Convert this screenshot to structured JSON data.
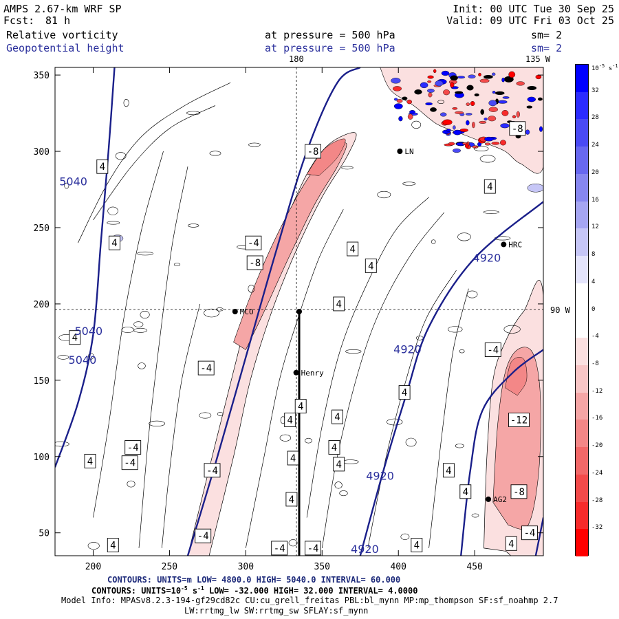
{
  "header": {
    "title": "AMPS 2.67-km WRF SP",
    "forecast_label": "Fcst:",
    "forecast_hours": "81 h",
    "init": "Init: 00 UTC Tue 30 Sep 25",
    "valid": "Valid: 09 UTC Fri 03 Oct 25",
    "field1_name": "Relative vorticity",
    "field1_level": "at pressure =  500 hPa",
    "field1_sm": "sm= 2",
    "field2_name": "Geopotential height",
    "field2_level": "at pressure =  500 hPa",
    "field2_sm": "sm= 2"
  },
  "map_labels": {
    "lon_180": "180",
    "lon_135w": "135 W",
    "lon_90w": "90 W"
  },
  "stations": [
    {
      "name": "MCO",
      "x": 293,
      "y": 195
    },
    {
      "name": "Henry",
      "x": 333,
      "y": 155
    },
    {
      "name": "HRC",
      "x": 469,
      "y": 239
    },
    {
      "name": "AG2",
      "x": 459,
      "y": 72
    },
    {
      "name": "LN",
      "x": 401,
      "y": 300
    },
    {
      "name": "",
      "x": 335,
      "y": 195
    }
  ],
  "contours": {
    "height_line1": "CONTOURS:  UNITS=m  LOW=  4800.0        HIGH=  5040.0        INTERVAL=   60.000",
    "vort_line2_pre": "CONTOURS:  UNITS=10",
    "vort_line2_exp": "-5",
    "vort_line2_post": " s",
    "vort_line2_exp2": "-1",
    "vort_line2_rest": "  LOW=  -32.000         HIGH=  32.000        INTERVAL=   4.0000",
    "model_info": "Model Info: MPASv8.2.3-194-gf29cd82c CU:cu_grell_freitas PBL:bl_mynn MP:mp_thompson SF:sf_noahmp 2.7",
    "model_info2": "LW:rrtmg_lw SW:rrtmg_sw SFLAY:sf_mynn"
  },
  "colorbar": {
    "unit_base": "10",
    "unit_exp": "-5",
    "unit_s": "s",
    "unit_exp2": "-1",
    "ticks": [
      "32",
      "28",
      "24",
      "20",
      "16",
      "12",
      "8",
      "4",
      "0",
      "-4",
      "-8",
      "-12",
      "-16",
      "-20",
      "-24",
      "-28",
      "-32"
    ],
    "colors": [
      "#0000ff",
      "#2b2bff",
      "#4a4af4",
      "#6868f0",
      "#8787f0",
      "#a6a6f2",
      "#c6c6f6",
      "#e4e4fb",
      "#ffffff",
      "#ffffff",
      "#fbe0e0",
      "#f8c6c6",
      "#f5a6a6",
      "#f38787",
      "#f26868",
      "#f34a4a",
      "#f72b2b",
      "#ff0000"
    ]
  },
  "chart_data": {
    "type": "contour-map",
    "xlim": [
      175,
      495
    ],
    "ylim": [
      35,
      355
    ],
    "x_ticks": [
      200,
      250,
      300,
      350,
      400,
      450
    ],
    "y_ticks": [
      50,
      100,
      150,
      200,
      250,
      300,
      350
    ],
    "height_labels": [
      {
        "text": "5040",
        "x": 187,
        "y": 280
      },
      {
        "text": "5040",
        "x": 197,
        "y": 182
      },
      {
        "text": "5040",
        "x": 193,
        "y": 163
      },
      {
        "text": "4920",
        "x": 458,
        "y": 230
      },
      {
        "text": "4920",
        "x": 406,
        "y": 170
      },
      {
        "text": "4920",
        "x": 388,
        "y": 87
      },
      {
        "text": "4920",
        "x": 378,
        "y": 39
      }
    ],
    "vort_labels": [
      {
        "text": "4",
        "x": 206,
        "y": 290
      },
      {
        "text": "4",
        "x": 214,
        "y": 240
      },
      {
        "text": "4",
        "x": 188,
        "y": 178
      },
      {
        "text": "4",
        "x": 198,
        "y": 97
      },
      {
        "text": "4",
        "x": 213,
        "y": 42
      },
      {
        "text": "-4",
        "x": 226,
        "y": 106
      },
      {
        "text": "-4",
        "x": 224,
        "y": 96
      },
      {
        "text": "-4",
        "x": 274,
        "y": 158
      },
      {
        "text": "-4",
        "x": 278,
        "y": 91
      },
      {
        "text": "-4",
        "x": 272,
        "y": 48
      },
      {
        "text": "-4",
        "x": 305,
        "y": 240
      },
      {
        "text": "-8",
        "x": 306,
        "y": 227
      },
      {
        "text": "-8",
        "x": 344,
        "y": 300
      },
      {
        "text": "-4",
        "x": 322,
        "y": 40
      },
      {
        "text": "-4",
        "x": 344,
        "y": 40
      },
      {
        "text": "4",
        "x": 331,
        "y": 99
      },
      {
        "text": "4",
        "x": 330,
        "y": 72
      },
      {
        "text": "4",
        "x": 329,
        "y": 124
      },
      {
        "text": "4",
        "x": 336,
        "y": 133
      },
      {
        "text": "4",
        "x": 361,
        "y": 200
      },
      {
        "text": "4",
        "x": 370,
        "y": 236
      },
      {
        "text": "4",
        "x": 382,
        "y": 225
      },
      {
        "text": "4",
        "x": 360,
        "y": 126
      },
      {
        "text": "4",
        "x": 358,
        "y": 106
      },
      {
        "text": "4",
        "x": 361,
        "y": 95
      },
      {
        "text": "4",
        "x": 404,
        "y": 142
      },
      {
        "text": "4",
        "x": 412,
        "y": 42
      },
      {
        "text": "4",
        "x": 433,
        "y": 91
      },
      {
        "text": "4",
        "x": 444,
        "y": 77
      },
      {
        "text": "4",
        "x": 474,
        "y": 43
      },
      {
        "text": "4",
        "x": 460,
        "y": 277
      },
      {
        "text": "-4",
        "x": 462,
        "y": 170
      },
      {
        "text": "-8",
        "x": 478,
        "y": 315
      },
      {
        "text": "-12",
        "x": 479,
        "y": 124
      },
      {
        "text": "-8",
        "x": 479,
        "y": 77
      },
      {
        "text": "-4",
        "x": 486,
        "y": 50
      }
    ],
    "height_contours": [
      {
        "value": 5040,
        "points": [
          [
            175,
            93
          ],
          [
            190,
            135
          ],
          [
            200,
            180
          ],
          [
            205,
            240
          ],
          [
            210,
            300
          ],
          [
            214,
            355
          ]
        ]
      },
      {
        "value": 4980,
        "points": [
          [
            262,
            35
          ],
          [
            280,
            95
          ],
          [
            300,
            165
          ],
          [
            320,
            235
          ],
          [
            340,
            300
          ],
          [
            360,
            345
          ],
          [
            375,
            355
          ]
        ]
      },
      {
        "value": 4920,
        "points": [
          [
            375,
            35
          ],
          [
            390,
            90
          ],
          [
            405,
            140
          ],
          [
            420,
            185
          ],
          [
            450,
            230
          ],
          [
            495,
            267
          ]
        ]
      },
      {
        "value": 4920,
        "points": [
          [
            441,
            35
          ],
          [
            447,
            90
          ],
          [
            455,
            130
          ],
          [
            475,
            155
          ],
          [
            495,
            170
          ]
        ]
      },
      {
        "value": 4920,
        "points": [
          [
            490,
            35
          ],
          [
            495,
            60
          ]
        ]
      }
    ],
    "vort_positive_bands": [
      {
        "value": -8,
        "points": [
          [
            263,
            40
          ],
          [
            280,
            100
          ],
          [
            296,
            160
          ],
          [
            310,
            210
          ],
          [
            330,
            255
          ],
          [
            350,
            300
          ],
          [
            365,
            308
          ],
          [
            355,
            280
          ],
          [
            335,
            240
          ],
          [
            318,
            195
          ],
          [
            302,
            150
          ],
          [
            290,
            100
          ],
          [
            275,
            40
          ]
        ]
      },
      {
        "value": -12,
        "points": [
          [
            458,
            60
          ],
          [
            463,
            110
          ],
          [
            468,
            150
          ],
          [
            482,
            175
          ],
          [
            495,
            185
          ],
          [
            495,
            40
          ],
          [
            480,
            60
          ]
        ]
      }
    ],
    "sections": [
      {
        "from": [
          335,
          35
        ],
        "to": [
          335,
          196
        ]
      }
    ]
  }
}
